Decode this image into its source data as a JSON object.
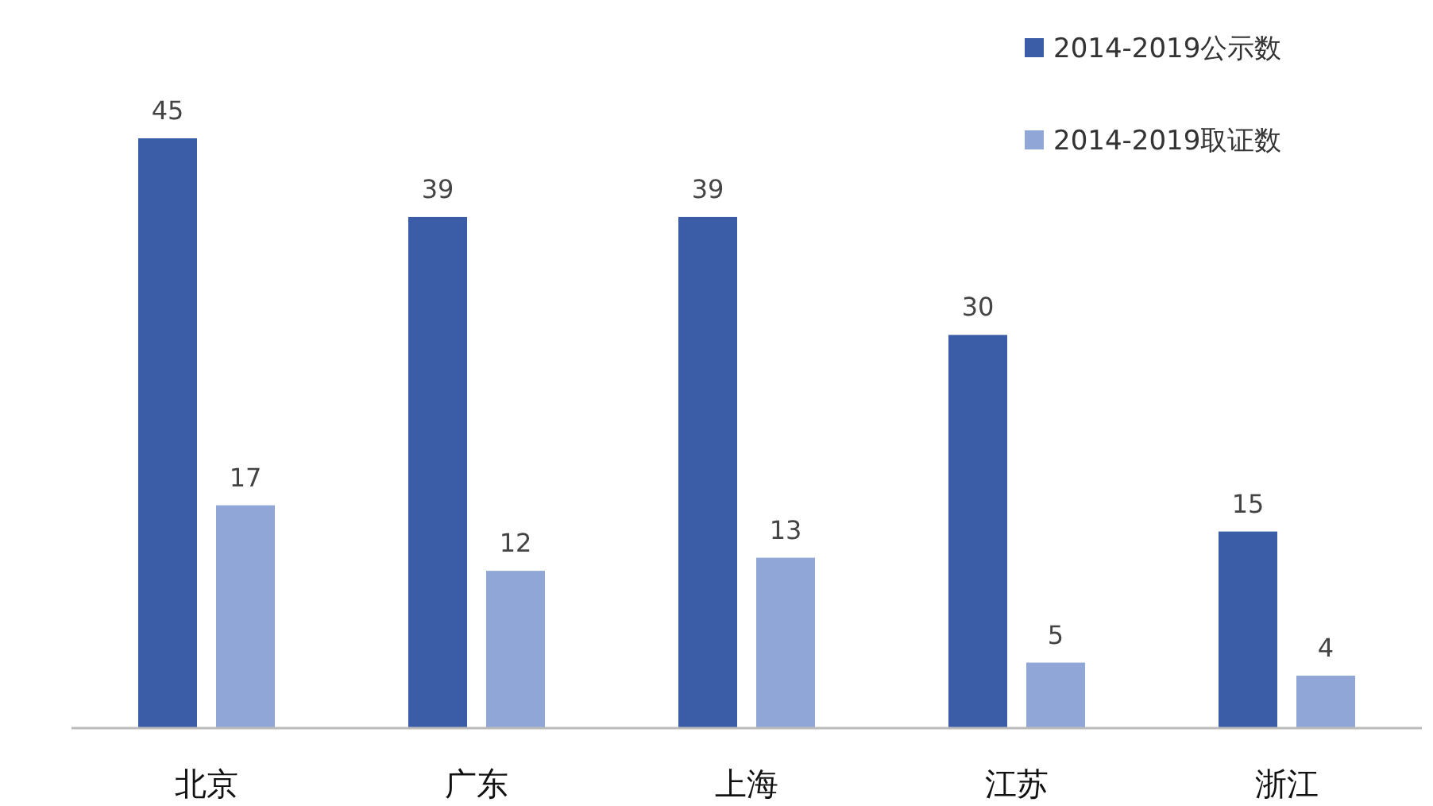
{
  "chart_data": {
    "type": "bar",
    "categories": [
      "北京",
      "广东",
      "上海",
      "江苏",
      "浙江"
    ],
    "series": [
      {
        "name": "2014-2019公示数",
        "color": "#3b5ca6",
        "values": [
          45,
          39,
          39,
          30,
          15
        ]
      },
      {
        "name": "2014-2019取证数",
        "color": "#8fa6d6",
        "values": [
          17,
          12,
          13,
          5,
          4
        ]
      }
    ],
    "data_labels": true,
    "legend": "top right"
  }
}
